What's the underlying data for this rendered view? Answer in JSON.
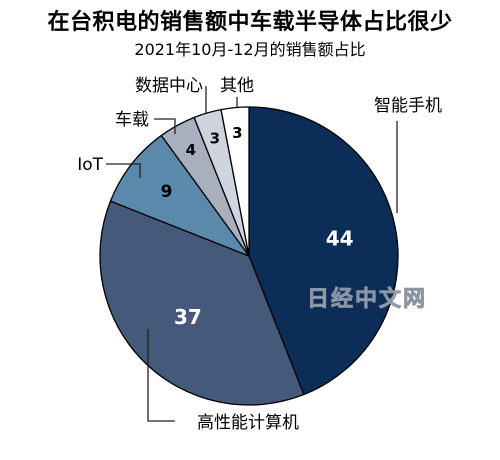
{
  "chart_data": {
    "type": "pie",
    "title": "在台积电的销售额中车载半导体占比很少",
    "subtitle": "2021年10月-12月的销售额占比",
    "slices": [
      {
        "label": "智能手机",
        "value": 44,
        "color": "#0d2d59",
        "text_color": "#ffffff"
      },
      {
        "label": "高性能计算机",
        "value": 37,
        "color": "#45597a",
        "text_color": "#ffffff"
      },
      {
        "label": "IoT",
        "value": 9,
        "color": "#5a89ab",
        "text_color": "#000000"
      },
      {
        "label": "车载",
        "value": 4,
        "color": "#a8afbd",
        "text_color": "#000000"
      },
      {
        "label": "数据中心",
        "value": 3,
        "color": "#d0d4de",
        "text_color": "#000000"
      },
      {
        "label": "其他",
        "value": 3,
        "color": "#ffffff",
        "text_color": "#000000"
      }
    ],
    "start": "12 o'clock",
    "direction": "clockwise"
  },
  "watermark": "日经中文网"
}
